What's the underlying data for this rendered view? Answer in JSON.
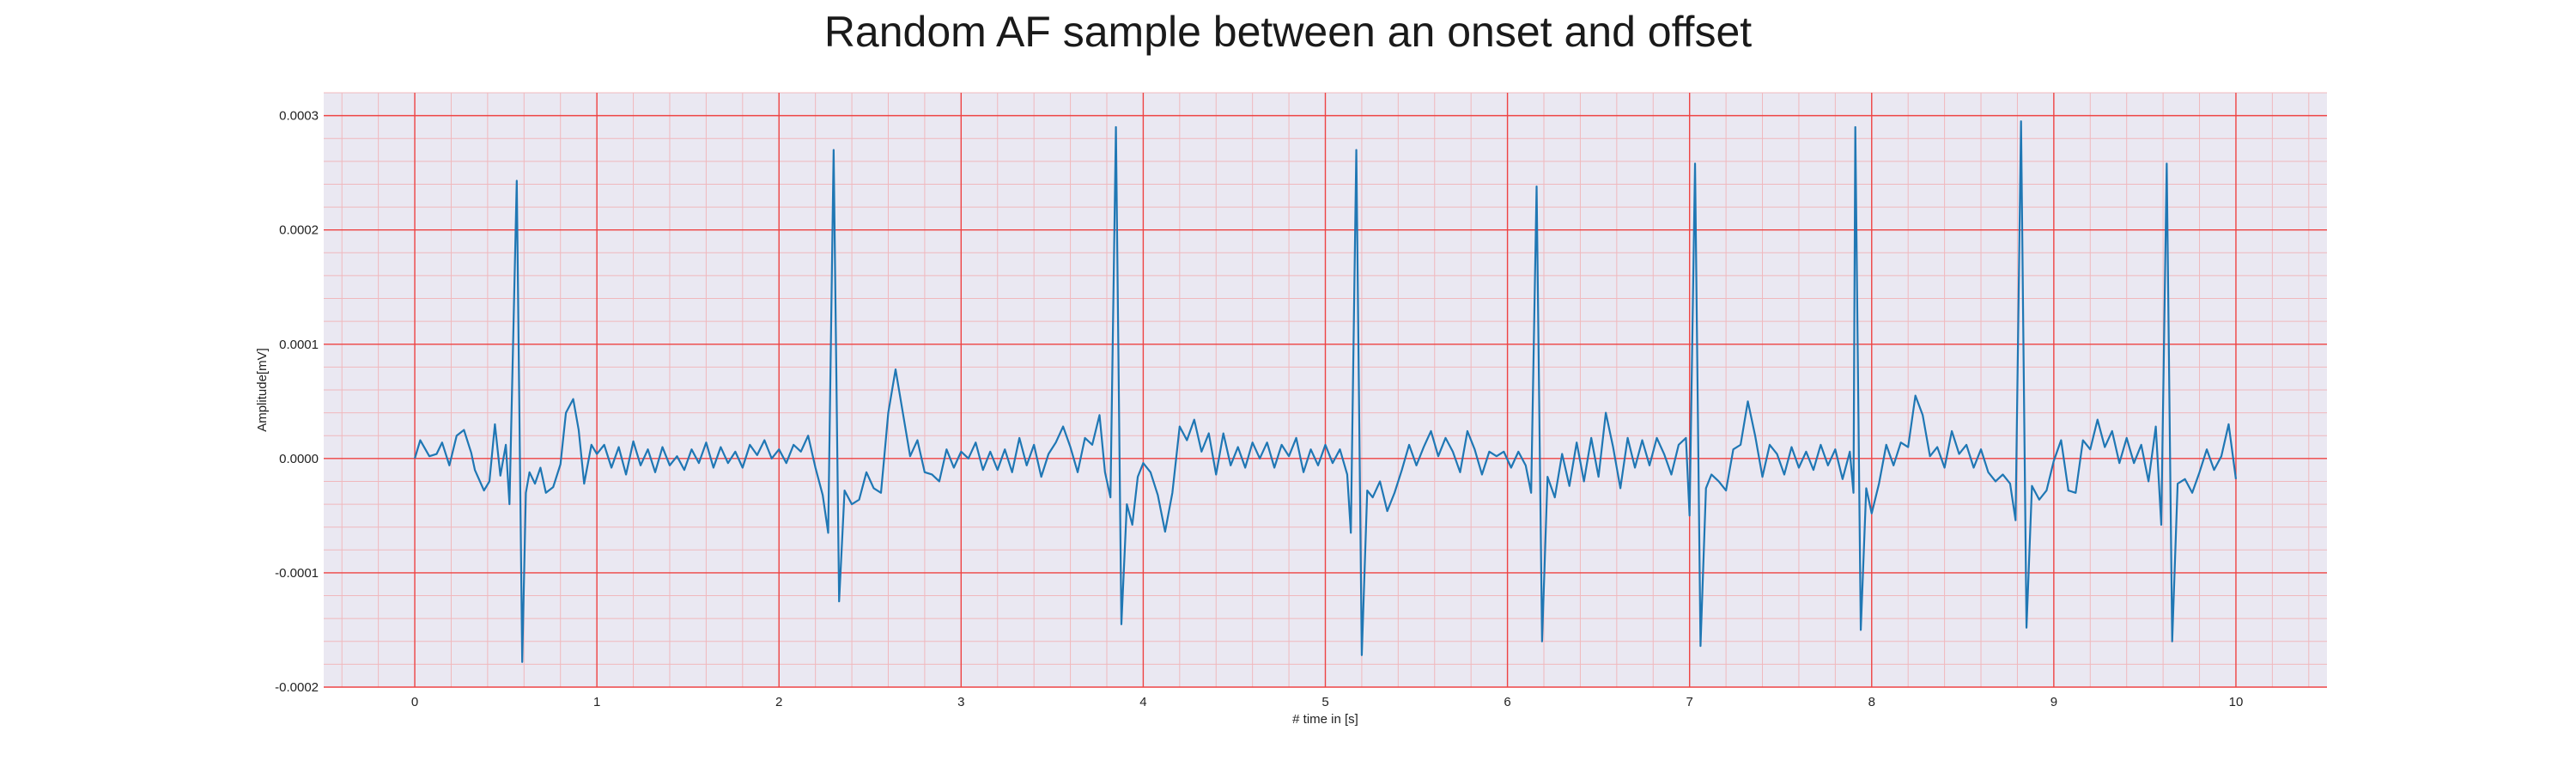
{
  "chart_data": {
    "type": "line",
    "title": "Random AF sample between an onset and offset",
    "xlabel": "# time in [s]",
    "ylabel": "Amplitude[mV]",
    "xlim": [
      -0.5,
      10.5
    ],
    "ylim": [
      -0.0002,
      0.00032
    ],
    "x_ticks": [
      0,
      1,
      2,
      3,
      4,
      5,
      6,
      7,
      8,
      9,
      10
    ],
    "x_tick_labels": [
      "0",
      "1",
      "2",
      "3",
      "4",
      "5",
      "6",
      "7",
      "8",
      "9",
      "10"
    ],
    "y_ticks": [
      -0.0002,
      -0.0001,
      0.0,
      0.0001,
      0.0002,
      0.0003
    ],
    "y_tick_labels": [
      "-0.0002",
      "-0.0001",
      "0.0000",
      "0.0001",
      "0.0002",
      "0.0003"
    ],
    "grid": true,
    "minor_grid": true,
    "legend": "none",
    "colors": {
      "line": "#1f77b4",
      "plot_background": "#eae8f2",
      "major_grid": "#ee4444",
      "minor_grid": "#f0b8bd"
    },
    "series": [
      {
        "values": [
          [
            0.0,
            0.0
          ],
          [
            0.03,
            1.6e-05
          ],
          [
            0.08,
            2e-06
          ],
          [
            0.12,
            4e-06
          ],
          [
            0.15,
            1.4e-05
          ],
          [
            0.19,
            -6e-06
          ],
          [
            0.23,
            2e-05
          ],
          [
            0.27,
            2.5e-05
          ],
          [
            0.31,
            5e-06
          ],
          [
            0.33,
            -1e-05
          ],
          [
            0.38,
            -2.8e-05
          ],
          [
            0.41,
            -2e-05
          ],
          [
            0.44,
            3e-05
          ],
          [
            0.47,
            -1.5e-05
          ],
          [
            0.5,
            1.2e-05
          ],
          [
            0.52,
            -4e-05
          ],
          [
            0.56,
            0.000243
          ],
          [
            0.59,
            -0.000178
          ],
          [
            0.61,
            -3e-05
          ],
          [
            0.63,
            -1.2e-05
          ],
          [
            0.66,
            -2.2e-05
          ],
          [
            0.69,
            -8e-06
          ],
          [
            0.72,
            -3e-05
          ],
          [
            0.76,
            -2.5e-05
          ],
          [
            0.8,
            -5e-06
          ],
          [
            0.83,
            4e-05
          ],
          [
            0.87,
            5.2e-05
          ],
          [
            0.9,
            2.5e-05
          ],
          [
            0.93,
            -2.2e-05
          ],
          [
            0.97,
            1.2e-05
          ],
          [
            1.0,
            4e-06
          ],
          [
            1.04,
            1.2e-05
          ],
          [
            1.08,
            -8e-06
          ],
          [
            1.12,
            1e-05
          ],
          [
            1.16,
            -1.4e-05
          ],
          [
            1.2,
            1.5e-05
          ],
          [
            1.24,
            -6e-06
          ],
          [
            1.28,
            8e-06
          ],
          [
            1.32,
            -1.2e-05
          ],
          [
            1.36,
            1e-05
          ],
          [
            1.4,
            -6e-06
          ],
          [
            1.44,
            2e-06
          ],
          [
            1.48,
            -1e-05
          ],
          [
            1.52,
            8e-06
          ],
          [
            1.56,
            -4e-06
          ],
          [
            1.6,
            1.4e-05
          ],
          [
            1.64,
            -8e-06
          ],
          [
            1.68,
            1e-05
          ],
          [
            1.72,
            -4e-06
          ],
          [
            1.76,
            6e-06
          ],
          [
            1.8,
            -8e-06
          ],
          [
            1.84,
            1.2e-05
          ],
          [
            1.88,
            3e-06
          ],
          [
            1.92,
            1.6e-05
          ],
          [
            1.96,
            0.0
          ],
          [
            2.0,
            8e-06
          ],
          [
            2.04,
            -4e-06
          ],
          [
            2.08,
            1.2e-05
          ],
          [
            2.12,
            6e-06
          ],
          [
            2.16,
            2e-05
          ],
          [
            2.2,
            -8e-06
          ],
          [
            2.24,
            -3.2e-05
          ],
          [
            2.27,
            -6.5e-05
          ],
          [
            2.3,
            0.00027
          ],
          [
            2.33,
            -0.000125
          ],
          [
            2.36,
            -2.8e-05
          ],
          [
            2.4,
            -4e-05
          ],
          [
            2.44,
            -3.6e-05
          ],
          [
            2.48,
            -1.2e-05
          ],
          [
            2.52,
            -2.6e-05
          ],
          [
            2.56,
            -3e-05
          ],
          [
            2.6,
            4e-05
          ],
          [
            2.64,
            7.8e-05
          ],
          [
            2.68,
            4e-05
          ],
          [
            2.72,
            2e-06
          ],
          [
            2.76,
            1.6e-05
          ],
          [
            2.8,
            -1.2e-05
          ],
          [
            2.84,
            -1.4e-05
          ],
          [
            2.88,
            -2e-05
          ],
          [
            2.92,
            8e-06
          ],
          [
            2.96,
            -8e-06
          ],
          [
            3.0,
            6e-06
          ],
          [
            3.04,
            0.0
          ],
          [
            3.08,
            1.4e-05
          ],
          [
            3.12,
            -1e-05
          ],
          [
            3.16,
            6e-06
          ],
          [
            3.2,
            -1e-05
          ],
          [
            3.24,
            8e-06
          ],
          [
            3.28,
            -1.2e-05
          ],
          [
            3.32,
            1.8e-05
          ],
          [
            3.36,
            -6e-06
          ],
          [
            3.4,
            1.2e-05
          ],
          [
            3.44,
            -1.6e-05
          ],
          [
            3.48,
            4e-06
          ],
          [
            3.52,
            1.4e-05
          ],
          [
            3.56,
            2.8e-05
          ],
          [
            3.6,
            1e-05
          ],
          [
            3.64,
            -1.2e-05
          ],
          [
            3.68,
            1.8e-05
          ],
          [
            3.72,
            1.2e-05
          ],
          [
            3.76,
            3.8e-05
          ],
          [
            3.79,
            -1.2e-05
          ],
          [
            3.82,
            -3.4e-05
          ],
          [
            3.85,
            0.00029
          ],
          [
            3.88,
            -0.000145
          ],
          [
            3.91,
            -4e-05
          ],
          [
            3.94,
            -5.8e-05
          ],
          [
            3.97,
            -1.6e-05
          ],
          [
            4.0,
            -4e-06
          ],
          [
            4.04,
            -1.2e-05
          ],
          [
            4.08,
            -3.2e-05
          ],
          [
            4.12,
            -6.4e-05
          ],
          [
            4.16,
            -3e-05
          ],
          [
            4.2,
            2.8e-05
          ],
          [
            4.24,
            1.6e-05
          ],
          [
            4.28,
            3.4e-05
          ],
          [
            4.32,
            6e-06
          ],
          [
            4.36,
            2.2e-05
          ],
          [
            4.4,
            -1.4e-05
          ],
          [
            4.44,
            2.2e-05
          ],
          [
            4.48,
            -6e-06
          ],
          [
            4.52,
            1e-05
          ],
          [
            4.56,
            -8e-06
          ],
          [
            4.6,
            1.4e-05
          ],
          [
            4.64,
            0.0
          ],
          [
            4.68,
            1.4e-05
          ],
          [
            4.72,
            -8e-06
          ],
          [
            4.76,
            1.2e-05
          ],
          [
            4.8,
            2e-06
          ],
          [
            4.84,
            1.8e-05
          ],
          [
            4.88,
            -1.2e-05
          ],
          [
            4.92,
            8e-06
          ],
          [
            4.96,
            -6e-06
          ],
          [
            5.0,
            1.2e-05
          ],
          [
            5.04,
            -4e-06
          ],
          [
            5.08,
            8e-06
          ],
          [
            5.12,
            -1.4e-05
          ],
          [
            5.14,
            -6.5e-05
          ],
          [
            5.17,
            0.00027
          ],
          [
            5.2,
            -0.000172
          ],
          [
            5.23,
            -2.8e-05
          ],
          [
            5.26,
            -3.4e-05
          ],
          [
            5.3,
            -2e-05
          ],
          [
            5.34,
            -4.6e-05
          ],
          [
            5.38,
            -3e-05
          ],
          [
            5.42,
            -1e-05
          ],
          [
            5.46,
            1.2e-05
          ],
          [
            5.5,
            -6e-06
          ],
          [
            5.54,
            1e-05
          ],
          [
            5.58,
            2.4e-05
          ],
          [
            5.62,
            2e-06
          ],
          [
            5.66,
            1.8e-05
          ],
          [
            5.7,
            6e-06
          ],
          [
            5.74,
            -1.2e-05
          ],
          [
            5.78,
            2.4e-05
          ],
          [
            5.82,
            8e-06
          ],
          [
            5.86,
            -1.4e-05
          ],
          [
            5.9,
            6e-06
          ],
          [
            5.94,
            2e-06
          ],
          [
            5.98,
            6e-06
          ],
          [
            6.02,
            -8e-06
          ],
          [
            6.06,
            6e-06
          ],
          [
            6.1,
            -6e-06
          ],
          [
            6.13,
            -3e-05
          ],
          [
            6.16,
            0.000238
          ],
          [
            6.19,
            -0.00016
          ],
          [
            6.22,
            -1.6e-05
          ],
          [
            6.26,
            -3.4e-05
          ],
          [
            6.3,
            4e-06
          ],
          [
            6.34,
            -2.4e-05
          ],
          [
            6.38,
            1.4e-05
          ],
          [
            6.42,
            -2e-05
          ],
          [
            6.46,
            1.8e-05
          ],
          [
            6.5,
            -1.6e-05
          ],
          [
            6.54,
            4e-05
          ],
          [
            6.58,
            1e-05
          ],
          [
            6.62,
            -2.6e-05
          ],
          [
            6.66,
            1.8e-05
          ],
          [
            6.7,
            -8e-06
          ],
          [
            6.74,
            1.6e-05
          ],
          [
            6.78,
            -6e-06
          ],
          [
            6.82,
            1.8e-05
          ],
          [
            6.86,
            4e-06
          ],
          [
            6.9,
            -1.4e-05
          ],
          [
            6.94,
            1.2e-05
          ],
          [
            6.98,
            1.8e-05
          ],
          [
            7.0,
            -5e-05
          ],
          [
            7.03,
            0.000258
          ],
          [
            7.06,
            -0.000164
          ],
          [
            7.09,
            -2.6e-05
          ],
          [
            7.12,
            -1.4e-05
          ],
          [
            7.16,
            -2e-05
          ],
          [
            7.2,
            -2.8e-05
          ],
          [
            7.24,
            8e-06
          ],
          [
            7.28,
            1.2e-05
          ],
          [
            7.32,
            5e-05
          ],
          [
            7.36,
            2e-05
          ],
          [
            7.4,
            -1.6e-05
          ],
          [
            7.44,
            1.2e-05
          ],
          [
            7.48,
            4e-06
          ],
          [
            7.52,
            -1.4e-05
          ],
          [
            7.56,
            1e-05
          ],
          [
            7.6,
            -8e-06
          ],
          [
            7.64,
            6e-06
          ],
          [
            7.68,
            -1e-05
          ],
          [
            7.72,
            1.2e-05
          ],
          [
            7.76,
            -6e-06
          ],
          [
            7.8,
            8e-06
          ],
          [
            7.84,
            -1.8e-05
          ],
          [
            7.88,
            6e-06
          ],
          [
            7.9,
            -3e-05
          ],
          [
            7.91,
            0.00029
          ],
          [
            7.94,
            -0.00015
          ],
          [
            7.97,
            -2.6e-05
          ],
          [
            8.0,
            -4.8e-05
          ],
          [
            8.04,
            -2.2e-05
          ],
          [
            8.08,
            1.2e-05
          ],
          [
            8.12,
            -6e-06
          ],
          [
            8.16,
            1.4e-05
          ],
          [
            8.2,
            1e-05
          ],
          [
            8.24,
            5.5e-05
          ],
          [
            8.28,
            3.8e-05
          ],
          [
            8.32,
            2e-06
          ],
          [
            8.36,
            1e-05
          ],
          [
            8.4,
            -8e-06
          ],
          [
            8.44,
            2.4e-05
          ],
          [
            8.48,
            4e-06
          ],
          [
            8.52,
            1.2e-05
          ],
          [
            8.56,
            -8e-06
          ],
          [
            8.6,
            8e-06
          ],
          [
            8.64,
            -1.2e-05
          ],
          [
            8.68,
            -2e-05
          ],
          [
            8.72,
            -1.4e-05
          ],
          [
            8.76,
            -2.2e-05
          ],
          [
            8.79,
            -5.4e-05
          ],
          [
            8.82,
            0.000295
          ],
          [
            8.85,
            -0.000148
          ],
          [
            8.88,
            -2.4e-05
          ],
          [
            8.92,
            -3.6e-05
          ],
          [
            8.96,
            -2.8e-05
          ],
          [
            9.0,
            -2e-06
          ],
          [
            9.04,
            1.6e-05
          ],
          [
            9.08,
            -2.8e-05
          ],
          [
            9.12,
            -3e-05
          ],
          [
            9.16,
            1.6e-05
          ],
          [
            9.2,
            8e-06
          ],
          [
            9.24,
            3.4e-05
          ],
          [
            9.28,
            1e-05
          ],
          [
            9.32,
            2.4e-05
          ],
          [
            9.36,
            -4e-06
          ],
          [
            9.4,
            1.8e-05
          ],
          [
            9.44,
            -4e-06
          ],
          [
            9.48,
            1.2e-05
          ],
          [
            9.52,
            -2e-05
          ],
          [
            9.56,
            2.8e-05
          ],
          [
            9.59,
            -5.8e-05
          ],
          [
            9.62,
            0.000258
          ],
          [
            9.65,
            -0.00016
          ],
          [
            9.68,
            -2.2e-05
          ],
          [
            9.72,
            -1.8e-05
          ],
          [
            9.76,
            -3e-05
          ],
          [
            9.8,
            -1.2e-05
          ],
          [
            9.84,
            8e-06
          ],
          [
            9.88,
            -1e-05
          ],
          [
            9.92,
            2e-06
          ],
          [
            9.96,
            3e-05
          ],
          [
            10.0,
            -1.8e-05
          ]
        ]
      }
    ]
  }
}
